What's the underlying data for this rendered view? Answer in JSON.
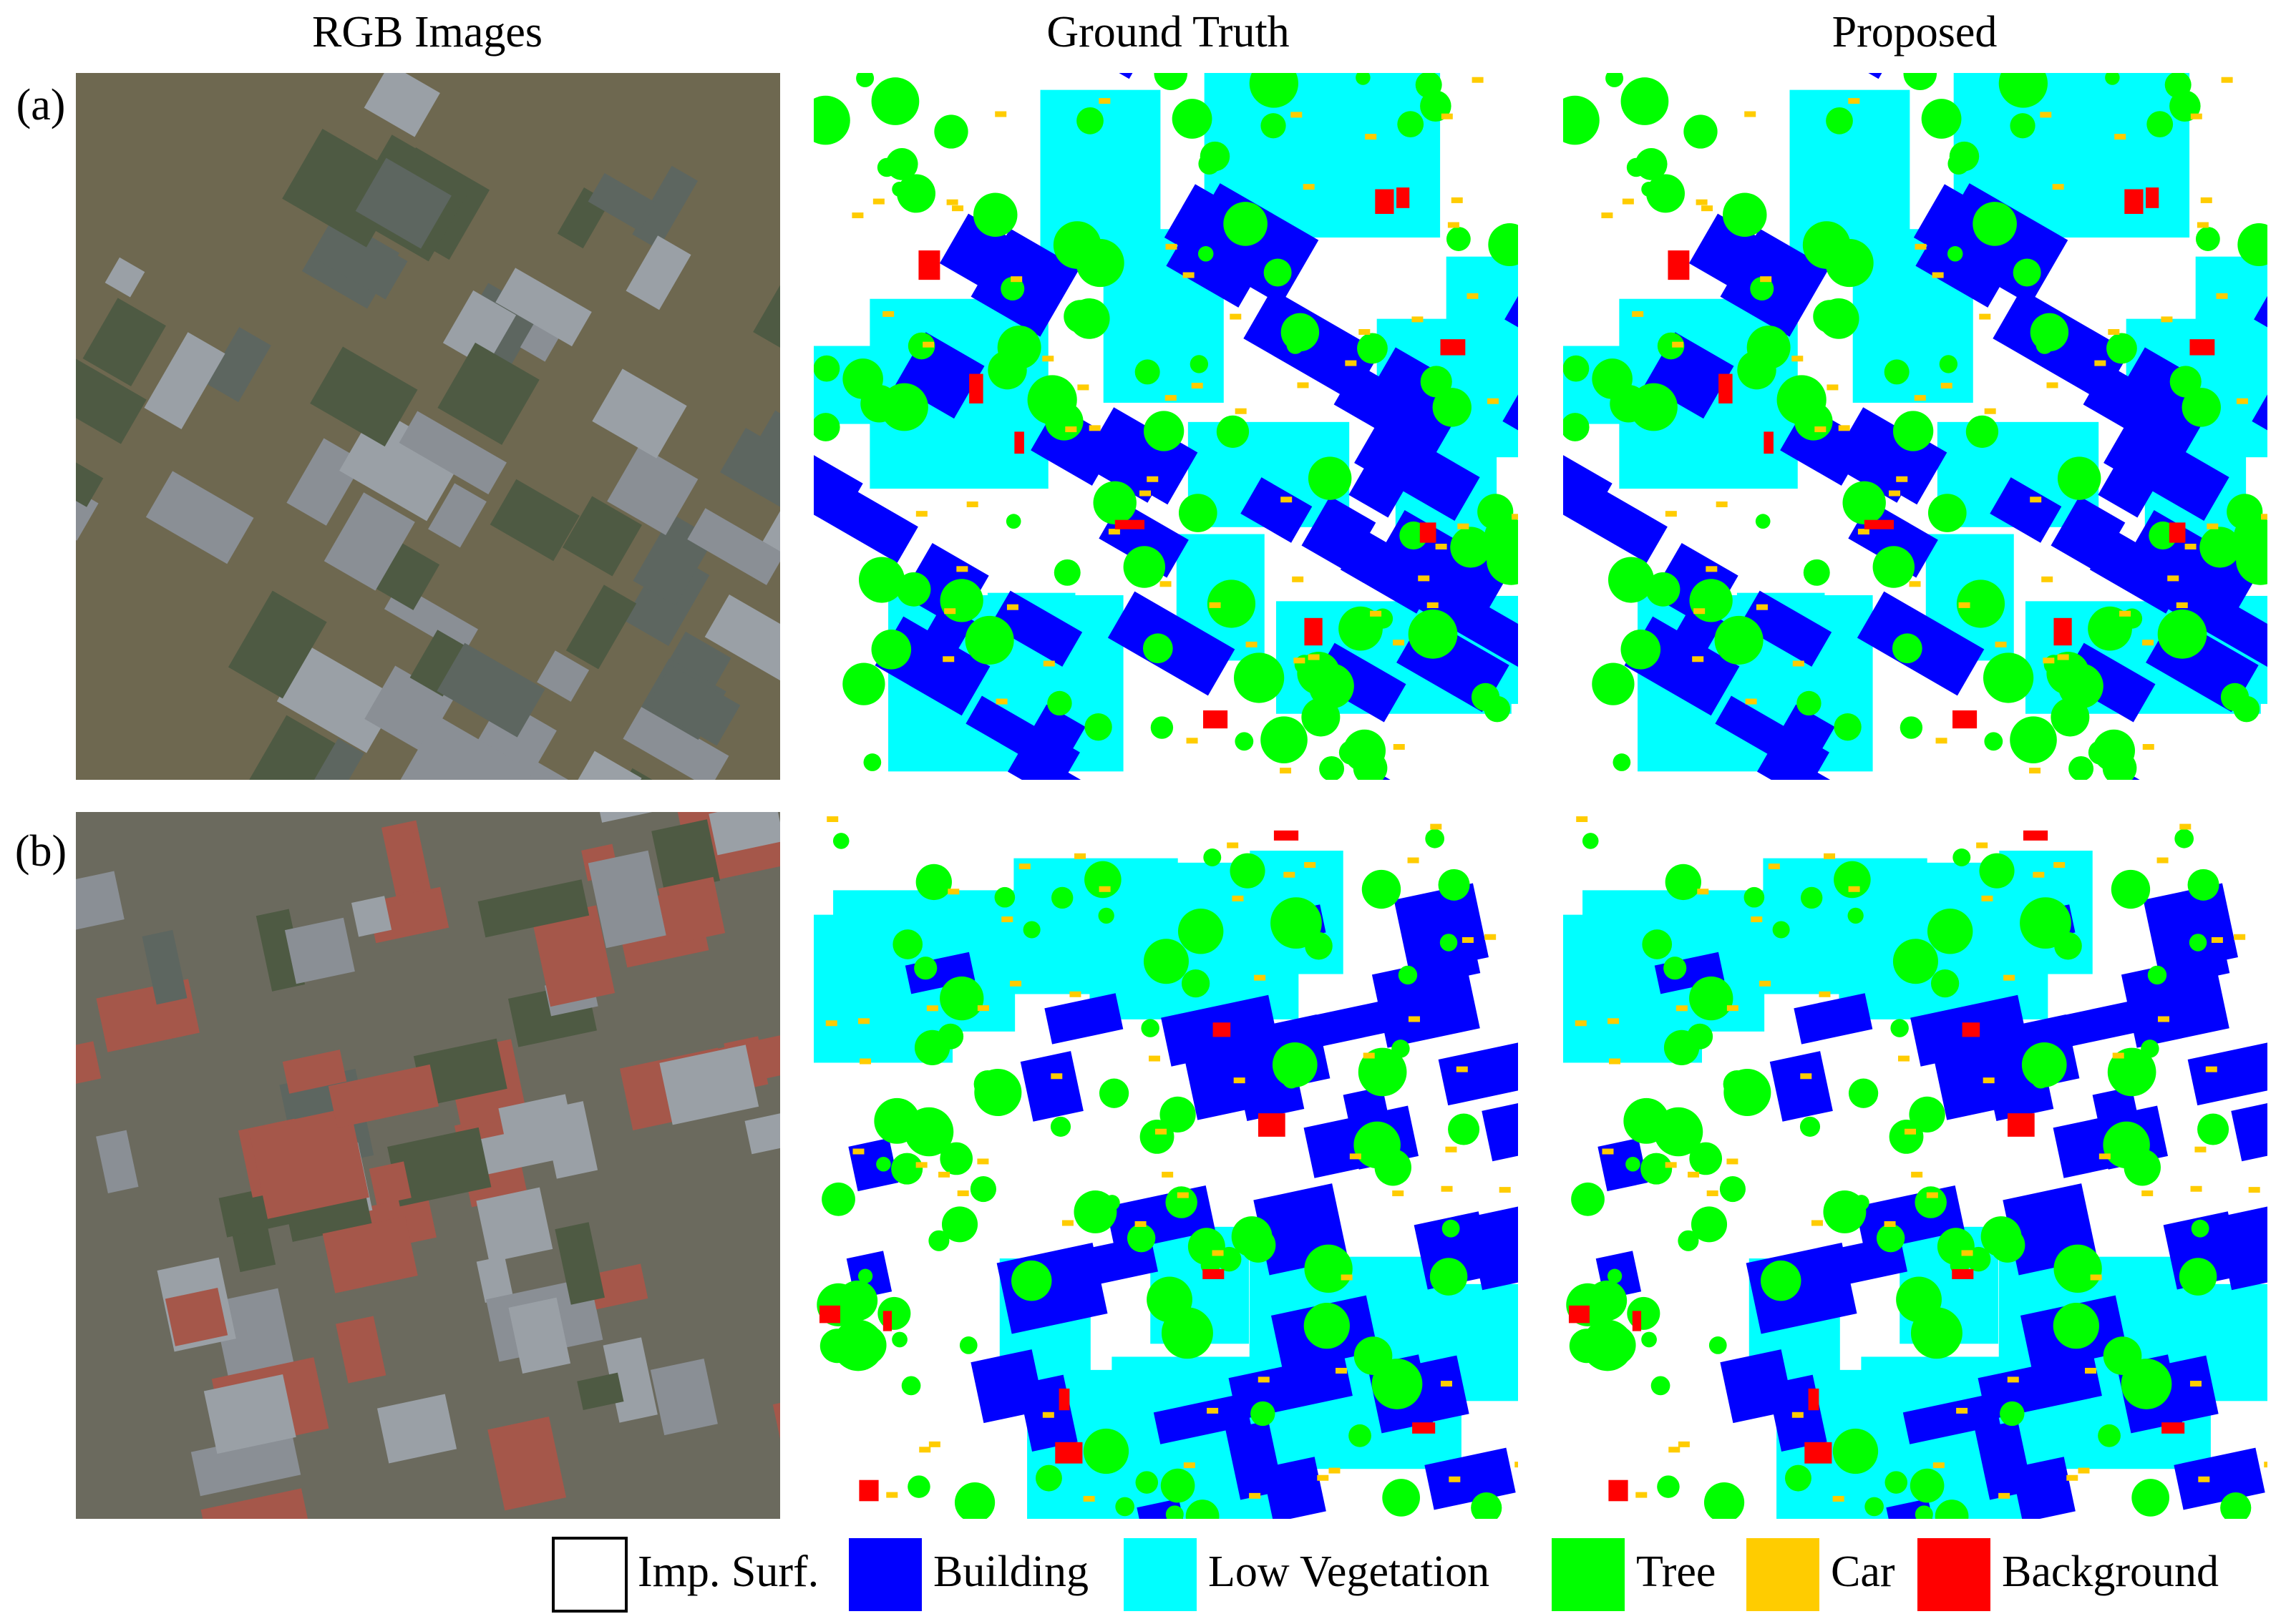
{
  "figure": {
    "columns": [
      "RGB Images",
      "Ground Truth",
      "Proposed"
    ],
    "rows": [
      "(a)",
      "(b)"
    ],
    "legend": [
      {
        "name": "Imp. Surf.",
        "color": "#ffffff"
      },
      {
        "name": "Building",
        "color": "#0000ff"
      },
      {
        "name": "Low Vegetation",
        "color": "#00ffff"
      },
      {
        "name": "Tree",
        "color": "#00ff00"
      },
      {
        "name": "Car",
        "color": "#ffcc00"
      },
      {
        "name": "Background",
        "color": "#ff0000"
      }
    ]
  }
}
